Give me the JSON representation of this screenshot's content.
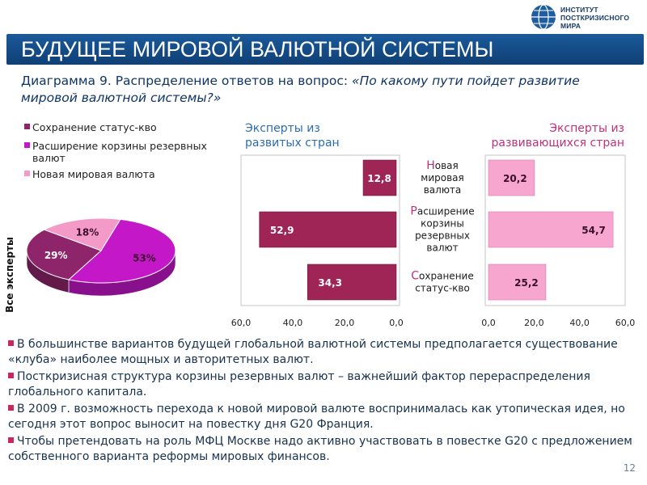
{
  "header": {
    "logo_lines": [
      "ИНСТИТУТ",
      "ПОСТКРИЗИСНОГО",
      "МИРА"
    ],
    "title": "БУДУЩЕЕ МИРОВОЙ ВАЛЮТНОЙ СИСТЕМЫ"
  },
  "subtitle": {
    "prefix": "Диаграмма 9. Распределение ответов на вопрос: ",
    "question": "«По какому пути пойдет развитие мировой валютной системы?»"
  },
  "colors": {
    "banner": "#124a85",
    "new_currency": "#f49ac8",
    "expand_basket": "#c417c8",
    "status_quo": "#8e2469",
    "bar_developed": "#9e2556",
    "bar_developing": "#f7a7cf"
  },
  "chart_data": [
    {
      "type": "pie",
      "ylabel": "Все эксперты",
      "legend": [
        "Сохранение статус-кво",
        "Расширение корзины резервных валют",
        "Новая мировая валюта"
      ],
      "labels": [
        "Расширение корзины резервных валют",
        "Сохранение статус-кво",
        "Новая мировая валюта"
      ],
      "values": [
        53,
        29,
        18
      ],
      "value_labels": [
        "53%",
        "29%",
        "18%"
      ],
      "colors": [
        "#c417c8",
        "#8e2469",
        "#f49ac8"
      ]
    },
    {
      "type": "bar",
      "orientation": "horizontal",
      "title": "Эксперты из развитых стран",
      "categories": [
        "Новая мировая валюта",
        "Расширение корзины резервных валют",
        "Сохранение статус-кво"
      ],
      "category_lines": [
        [
          "Новая",
          "мировая",
          "валюта"
        ],
        [
          "Расширение",
          "корзины",
          "резервных",
          "валют"
        ],
        [
          "Сохранение",
          "статус-кво"
        ]
      ],
      "values": [
        12.8,
        52.9,
        34.3
      ],
      "value_labels": [
        "12,8",
        "52,9",
        "34,3"
      ],
      "xlim": [
        60,
        0
      ],
      "xticks": [
        "60,0",
        "40,0",
        "20,0",
        "0,0"
      ]
    },
    {
      "type": "bar",
      "orientation": "horizontal",
      "title": "Эксперты из развивающихся стран",
      "categories": [
        "Новая мировая валюта",
        "Расширение корзины резервных валют",
        "Сохранение статус-кво"
      ],
      "values": [
        20.2,
        54.7,
        25.2
      ],
      "value_labels": [
        "20,2",
        "54,7",
        "25,2"
      ],
      "xlim": [
        0,
        60
      ],
      "xticks": [
        "0,0",
        "20,0",
        "40,0",
        "60,0"
      ]
    }
  ],
  "bullets": [
    "В большинстве вариантов будущей глобальной валютной системы предполагается существование «клуба» наиболее мощных и авторитетных валют.",
    "Посткризисная структура корзины резервных валют – важнейший фактор перераспределения глобального капитала.",
    "В 2009 г. возможность перехода к новой мировой валюте воспринималась как утопическая идея, но сегодня этот вопрос выносит на повестку дня G20 Франция.",
    "Чтобы претендовать на роль МФЦ Москве надо активно участвовать в повестке G20 с предложением  собственного варианта реформы мировых финансов."
  ],
  "page_number": "12"
}
